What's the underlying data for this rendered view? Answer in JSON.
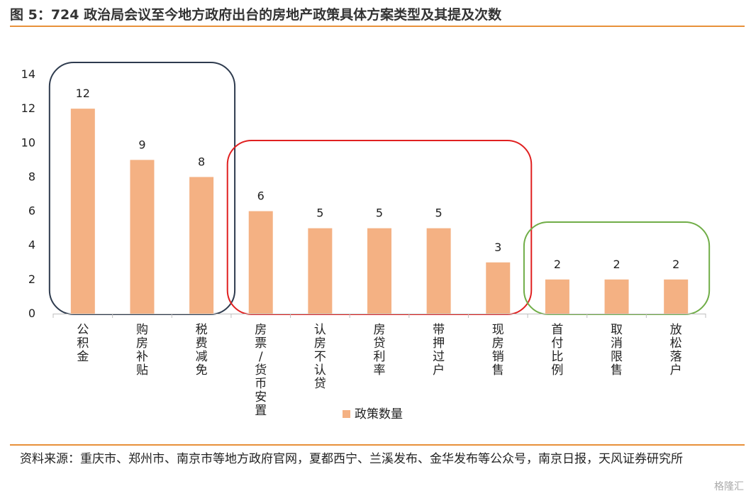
{
  "figure_title": "图 5：724 政治局会议至今地方政府出台的房地产政策具体方案类型及其提及次数",
  "source_text": "资料来源：重庆市、郑州市、南京市等地方政府官网，夏都西宁、兰溪发布、金华发布等公众号，南京日报，天风证券研究所",
  "watermark": "格隆汇",
  "chart_data": {
    "type": "bar",
    "categories": [
      "公积金",
      "购房补贴",
      "税费减免",
      "房票/货币安置",
      "认房不认贷",
      "房贷利率",
      "带押过户",
      "现房销售",
      "首付比例",
      "取消限售",
      "放松落户"
    ],
    "series": [
      {
        "name": "政策数量",
        "values": [
          12,
          9,
          8,
          6,
          5,
          5,
          5,
          3,
          2,
          2,
          2
        ],
        "color": "#f4b183"
      }
    ],
    "ylim": [
      0,
      14
    ],
    "yticks": [
      0,
      2,
      4,
      6,
      8,
      10,
      12,
      14
    ],
    "data_labels": true,
    "legend_position": "bottom",
    "grid": false,
    "groups": [
      {
        "categories": [
          0,
          2
        ],
        "color": "#2e3b4e"
      },
      {
        "categories": [
          3,
          7
        ],
        "color": "#e02020"
      },
      {
        "categories": [
          8,
          10
        ],
        "color": "#70ad47"
      }
    ]
  }
}
